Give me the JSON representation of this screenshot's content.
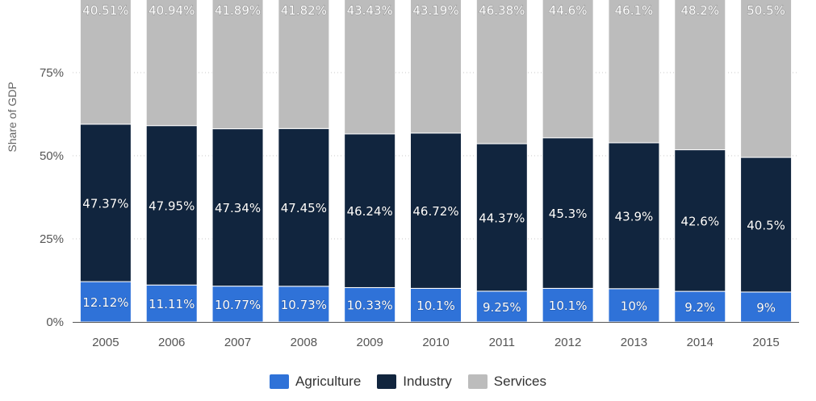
{
  "chart_data": {
    "type": "bar",
    "stacked": true,
    "ylabel": "Share of GDP",
    "ylim": [
      0,
      100
    ],
    "yticks": [
      "0%",
      "25%",
      "50%",
      "75%"
    ],
    "grid": true,
    "legend_position": "bottom",
    "categories": [
      "2005",
      "2006",
      "2007",
      "2008",
      "2009",
      "2010",
      "2011",
      "2012",
      "2013",
      "2014",
      "2015"
    ],
    "series": [
      {
        "name": "Agriculture",
        "color": "#2f72d8",
        "values": [
          12.12,
          11.11,
          10.77,
          10.73,
          10.33,
          10.1,
          9.25,
          10.1,
          10,
          9.2,
          9
        ],
        "labels": [
          "12.12%",
          "11.11%",
          "10.77%",
          "10.73%",
          "10.33%",
          "10.1%",
          "9.25%",
          "10.1%",
          "10%",
          "9.2%",
          "9%"
        ]
      },
      {
        "name": "Industry",
        "color": "#11253e",
        "values": [
          47.37,
          47.95,
          47.34,
          47.45,
          46.24,
          46.72,
          44.37,
          45.3,
          43.9,
          42.6,
          40.5
        ],
        "labels": [
          "47.37%",
          "47.95%",
          "47.34%",
          "47.45%",
          "46.24%",
          "46.72%",
          "44.37%",
          "45.3%",
          "43.9%",
          "42.6%",
          "40.5%"
        ]
      },
      {
        "name": "Services",
        "color": "#bcbcbc",
        "values": [
          40.51,
          40.94,
          41.89,
          41.82,
          43.43,
          43.19,
          46.38,
          44.6,
          46.1,
          48.2,
          50.5
        ],
        "labels": [
          "40.51%",
          "40.94%",
          "41.89%",
          "41.82%",
          "43.43%",
          "43.19%",
          "46.38%",
          "44.6%",
          "46.1%",
          "48.2%",
          "50.5%"
        ]
      }
    ]
  }
}
